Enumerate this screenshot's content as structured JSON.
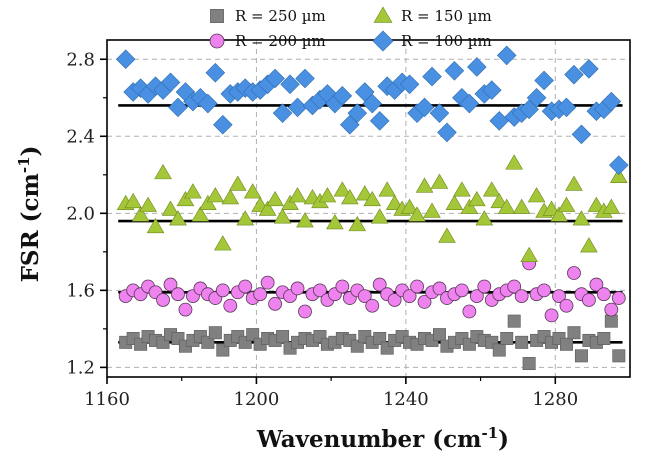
{
  "chart_data": {
    "type": "scatter",
    "xlabel": "Wavenumber (cm",
    "xlabel_sup": "-1",
    "xlabel_close": ")",
    "ylabel": "FSR (cm",
    "ylabel_sup": "-1",
    "ylabel_close": ")",
    "xlim": [
      1160,
      1300
    ],
    "ylim": [
      1.15,
      2.9
    ],
    "xticks": [
      1160,
      1200,
      1240,
      1280
    ],
    "yticks": [
      1.2,
      1.6,
      2.0,
      2.4,
      2.8
    ],
    "xtick_labels": [
      "1160",
      "1200",
      "1240",
      "1280"
    ],
    "ytick_labels": [
      "1.2",
      "1.6",
      "2.0",
      "2.4",
      "2.8"
    ],
    "grid": true,
    "legend_position": "top",
    "x": [
      1165,
      1167,
      1169,
      1171,
      1173,
      1175,
      1177,
      1179,
      1181,
      1183,
      1185,
      1187,
      1189,
      1191,
      1193,
      1195,
      1197,
      1199,
      1201,
      1203,
      1205,
      1207,
      1209,
      1211,
      1213,
      1215,
      1217,
      1219,
      1221,
      1223,
      1225,
      1227,
      1229,
      1231,
      1233,
      1235,
      1237,
      1239,
      1241,
      1243,
      1245,
      1247,
      1249,
      1251,
      1253,
      1255,
      1257,
      1259,
      1261,
      1263,
      1265,
      1267,
      1269,
      1271,
      1273,
      1275,
      1277,
      1279,
      1281,
      1283,
      1285,
      1287,
      1289,
      1291,
      1293,
      1295,
      1297
    ],
    "series": [
      {
        "name": "R = 250 µm",
        "marker": "square",
        "color": "#808080",
        "fit": 1.33,
        "values": [
          1.33,
          1.35,
          1.32,
          1.36,
          1.34,
          1.33,
          1.37,
          1.35,
          1.31,
          1.34,
          1.36,
          1.33,
          1.38,
          1.29,
          1.34,
          1.36,
          1.33,
          1.37,
          1.32,
          1.35,
          1.34,
          1.36,
          1.3,
          1.33,
          1.35,
          1.34,
          1.36,
          1.32,
          1.33,
          1.35,
          1.34,
          1.31,
          1.36,
          1.33,
          1.35,
          1.3,
          1.34,
          1.36,
          1.33,
          1.32,
          1.35,
          1.34,
          1.37,
          1.31,
          1.33,
          1.35,
          1.32,
          1.36,
          1.34,
          1.33,
          1.29,
          1.35,
          1.44,
          1.33,
          1.22,
          1.34,
          1.36,
          1.33,
          1.35,
          1.32,
          1.38,
          1.26,
          1.34,
          1.33,
          1.35,
          1.44,
          1.26
        ]
      },
      {
        "name": "R = 200 µm",
        "marker": "circle",
        "color": "#ee82ee",
        "fit": 1.59,
        "values": [
          1.57,
          1.6,
          1.58,
          1.62,
          1.59,
          1.55,
          1.63,
          1.58,
          1.5,
          1.57,
          1.61,
          1.58,
          1.56,
          1.6,
          1.52,
          1.59,
          1.62,
          1.56,
          1.58,
          1.64,
          1.53,
          1.59,
          1.57,
          1.61,
          1.49,
          1.58,
          1.6,
          1.55,
          1.58,
          1.62,
          1.56,
          1.6,
          1.57,
          1.52,
          1.63,
          1.58,
          1.55,
          1.6,
          1.57,
          1.62,
          1.54,
          1.59,
          1.61,
          1.56,
          1.58,
          1.6,
          1.49,
          1.57,
          1.62,
          1.55,
          1.58,
          1.6,
          1.62,
          1.57,
          1.74,
          1.58,
          1.6,
          1.47,
          1.57,
          1.52,
          1.69,
          1.58,
          1.55,
          1.63,
          1.58,
          1.5,
          1.56
        ]
      },
      {
        "name": "R = 150 µm",
        "marker": "triangle",
        "color": "#a4c639",
        "fit": 1.96,
        "values": [
          2.05,
          2.06,
          1.99,
          2.04,
          1.93,
          2.21,
          2.02,
          1.97,
          2.07,
          2.11,
          1.99,
          2.05,
          2.09,
          1.84,
          2.08,
          2.15,
          1.97,
          2.11,
          2.04,
          2.02,
          2.07,
          1.98,
          2.05,
          2.09,
          1.96,
          2.08,
          2.06,
          2.09,
          1.95,
          2.12,
          2.08,
          1.94,
          2.1,
          2.07,
          1.98,
          2.12,
          2.05,
          2.02,
          2.03,
          1.99,
          2.14,
          2.01,
          2.16,
          1.88,
          2.05,
          2.12,
          2.03,
          2.07,
          1.97,
          2.12,
          2.06,
          2.03,
          2.26,
          2.03,
          1.78,
          2.09,
          2.01,
          2.02,
          1.99,
          2.04,
          2.15,
          1.97,
          1.83,
          2.04,
          2.01,
          2.03,
          2.19
        ]
      },
      {
        "name": "R = 100 µm",
        "marker": "diamond",
        "color": "#4a90e2",
        "fit": 2.56,
        "values": [
          2.8,
          2.63,
          2.65,
          2.62,
          2.66,
          2.64,
          2.68,
          2.55,
          2.63,
          2.58,
          2.6,
          2.57,
          2.73,
          2.46,
          2.62,
          2.63,
          2.65,
          2.63,
          2.64,
          2.67,
          2.7,
          2.52,
          2.67,
          2.55,
          2.7,
          2.56,
          2.59,
          2.62,
          2.57,
          2.61,
          2.46,
          2.52,
          2.63,
          2.57,
          2.48,
          2.66,
          2.64,
          2.68,
          2.67,
          2.52,
          2.55,
          2.71,
          2.52,
          2.42,
          2.74,
          2.6,
          2.57,
          2.76,
          2.62,
          2.64,
          2.48,
          2.82,
          2.5,
          2.52,
          2.54,
          2.6,
          2.69,
          2.53,
          2.54,
          2.55,
          2.72,
          2.41,
          2.75,
          2.53,
          2.54,
          2.58,
          2.25
        ]
      }
    ]
  }
}
